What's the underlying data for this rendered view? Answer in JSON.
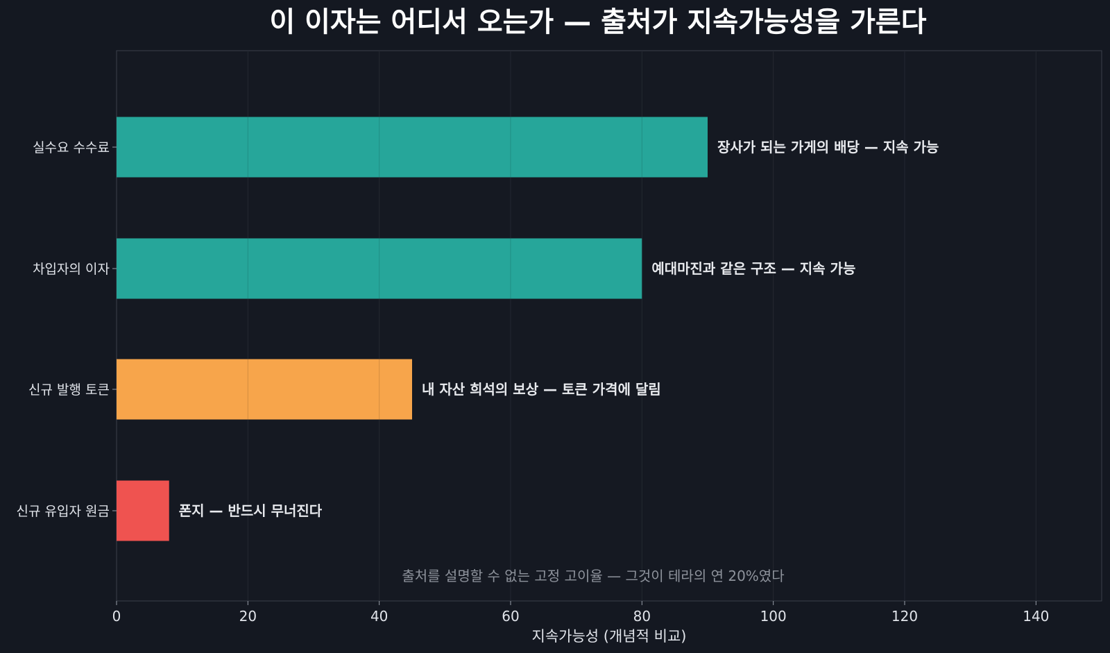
{
  "chart_data": {
    "type": "bar",
    "orientation": "horizontal",
    "title": "이 이자는 어디서 오는가 — 출처가 지속가능성을 가른다",
    "xlabel": "지속가능성 (개념적 비교)",
    "ylabel": "",
    "xlim": [
      0,
      150
    ],
    "xticks": [
      0,
      20,
      40,
      60,
      80,
      100,
      120,
      140
    ],
    "grid": true,
    "categories": [
      "실수요 수수료",
      "차입자의 이자",
      "신규 발행 토큰",
      "신규 유입자 원금"
    ],
    "values": [
      90,
      80,
      45,
      8
    ],
    "bar_colors": [
      "#26a69a",
      "#26a69a",
      "#f7a54b",
      "#ef5350"
    ],
    "bar_labels": [
      "장사가 되는 가게의 배당 — 지속 가능",
      "예대마진과 같은 구조 — 지속 가능",
      "내 자산 희석의 보상 — 토큰 가격에 달림",
      "폰지 — 반드시 무너진다"
    ],
    "annotation": "출처를 설명할 수 없는 고정 고이율 — 그것이 테라의 연 20%였다"
  }
}
